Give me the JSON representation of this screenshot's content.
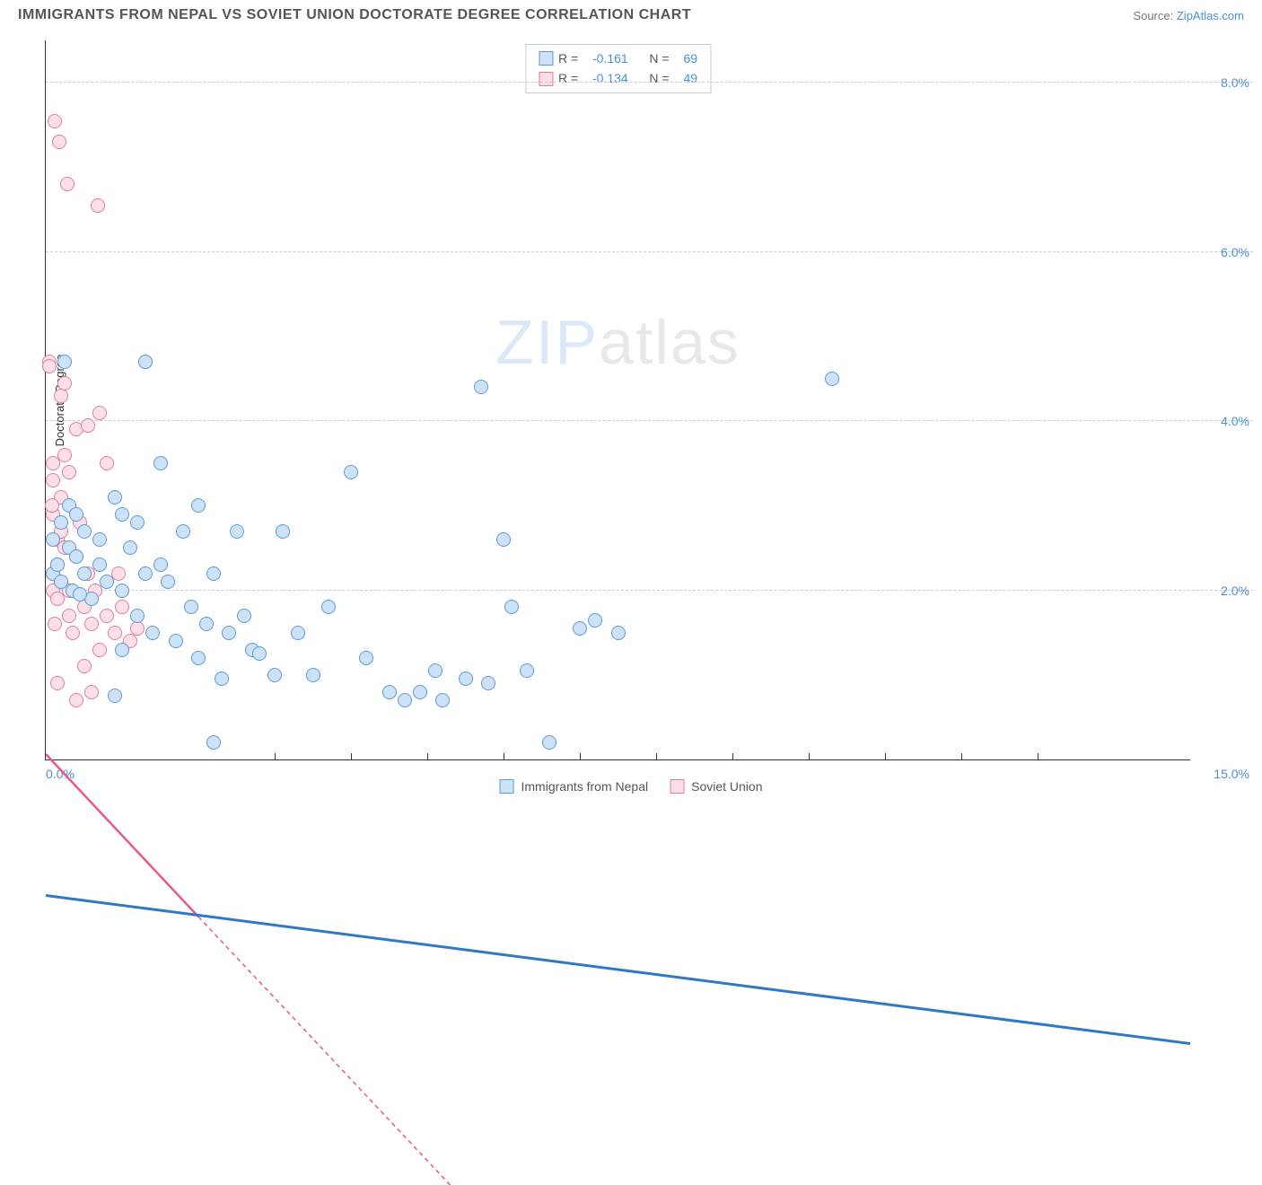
{
  "header": {
    "title": "IMMIGRANTS FROM NEPAL VS SOVIET UNION DOCTORATE DEGREE CORRELATION CHART",
    "source_label": "Source:",
    "source_name": "ZipAtlas.com"
  },
  "watermark": {
    "part1": "ZIP",
    "part2": "atlas"
  },
  "chart": {
    "type": "scatter",
    "ylabel": "Doctorate Degree",
    "xlim": [
      0,
      15
    ],
    "ylim": [
      0,
      8.5
    ],
    "x_min_label": "0.0%",
    "x_max_label": "15.0%",
    "x_ticks": [
      3,
      4,
      5,
      6,
      7,
      8,
      9,
      10,
      11,
      12,
      13
    ],
    "y_ticks": [
      {
        "v": 2,
        "label": "2.0%"
      },
      {
        "v": 4,
        "label": "4.0%"
      },
      {
        "v": 6,
        "label": "6.0%"
      },
      {
        "v": 8,
        "label": "8.0%"
      }
    ],
    "grid_color": "#cccccc",
    "axis_color": "#333333",
    "label_color": "#4a90d9",
    "point_radius": 8,
    "series": [
      {
        "name": "Immigrants from Nepal",
        "fill": "#cde2f6",
        "stroke": "#5a9bd5",
        "line_color": "#2f78c4",
        "line_width": 3,
        "line_dash": "solid",
        "r_value": "-0.161",
        "n_value": "69",
        "reg_start": {
          "x": 0,
          "y": 2.15
        },
        "reg_end": {
          "x": 15,
          "y": 1.05
        },
        "points": [
          [
            0.1,
            2.2
          ],
          [
            0.1,
            2.6
          ],
          [
            0.15,
            2.3
          ],
          [
            0.2,
            2.8
          ],
          [
            0.2,
            2.1
          ],
          [
            0.25,
            4.7
          ],
          [
            0.3,
            2.5
          ],
          [
            0.3,
            3.0
          ],
          [
            0.35,
            2.0
          ],
          [
            0.4,
            2.4
          ],
          [
            0.4,
            2.9
          ],
          [
            0.5,
            2.7
          ],
          [
            0.5,
            2.2
          ],
          [
            0.6,
            1.9
          ],
          [
            0.7,
            2.6
          ],
          [
            0.7,
            2.3
          ],
          [
            0.8,
            2.1
          ],
          [
            0.9,
            3.1
          ],
          [
            1.0,
            2.9
          ],
          [
            1.0,
            2.0
          ],
          [
            1.1,
            2.5
          ],
          [
            1.2,
            1.7
          ],
          [
            1.2,
            2.8
          ],
          [
            1.3,
            4.7
          ],
          [
            1.3,
            2.2
          ],
          [
            1.4,
            1.5
          ],
          [
            1.5,
            3.5
          ],
          [
            1.5,
            2.3
          ],
          [
            1.6,
            2.1
          ],
          [
            1.7,
            1.4
          ],
          [
            1.8,
            2.7
          ],
          [
            1.9,
            1.8
          ],
          [
            2.0,
            1.2
          ],
          [
            2.0,
            3.0
          ],
          [
            2.1,
            1.6
          ],
          [
            2.2,
            2.2
          ],
          [
            2.3,
            0.95
          ],
          [
            2.4,
            1.5
          ],
          [
            2.5,
            2.7
          ],
          [
            2.6,
            1.7
          ],
          [
            2.7,
            1.3
          ],
          [
            2.8,
            1.25
          ],
          [
            3.0,
            1.0
          ],
          [
            3.1,
            2.7
          ],
          [
            3.3,
            1.5
          ],
          [
            3.5,
            1.0
          ],
          [
            3.7,
            1.8
          ],
          [
            4.0,
            3.4
          ],
          [
            4.2,
            1.2
          ],
          [
            4.5,
            0.8
          ],
          [
            4.7,
            0.7
          ],
          [
            4.9,
            0.8
          ],
          [
            5.1,
            1.05
          ],
          [
            5.2,
            0.7
          ],
          [
            5.5,
            0.95
          ],
          [
            5.7,
            4.4
          ],
          [
            5.8,
            0.9
          ],
          [
            6.0,
            2.6
          ],
          [
            6.1,
            1.8
          ],
          [
            6.3,
            1.05
          ],
          [
            6.6,
            0.2
          ],
          [
            7.0,
            1.55
          ],
          [
            7.2,
            1.65
          ],
          [
            7.5,
            1.5
          ],
          [
            10.3,
            4.5
          ],
          [
            1.0,
            1.3
          ],
          [
            0.9,
            0.75
          ],
          [
            2.2,
            0.2
          ],
          [
            0.45,
            1.95
          ]
        ]
      },
      {
        "name": "Soviet Union",
        "fill": "#fbe0e7",
        "stroke": "#e87a9a",
        "line_color": "#e85a85",
        "line_width": 2.5,
        "line_dash": "solid_then_dash",
        "r_value": "-0.134",
        "n_value": "49",
        "reg_start": {
          "x": 0,
          "y": 3.2
        },
        "reg_end": {
          "x": 5.3,
          "y": 0
        },
        "reg_solid_end_x": 2.0,
        "points": [
          [
            0.05,
            4.7
          ],
          [
            0.05,
            4.65
          ],
          [
            0.1,
            3.5
          ],
          [
            0.1,
            3.3
          ],
          [
            0.1,
            2.9
          ],
          [
            0.1,
            2.2
          ],
          [
            0.1,
            2.0
          ],
          [
            0.12,
            7.55
          ],
          [
            0.15,
            2.6
          ],
          [
            0.15,
            2.3
          ],
          [
            0.15,
            1.9
          ],
          [
            0.18,
            7.3
          ],
          [
            0.2,
            4.3
          ],
          [
            0.2,
            3.1
          ],
          [
            0.2,
            2.7
          ],
          [
            0.2,
            2.1
          ],
          [
            0.25,
            3.6
          ],
          [
            0.25,
            2.5
          ],
          [
            0.28,
            6.8
          ],
          [
            0.3,
            1.7
          ],
          [
            0.3,
            2.0
          ],
          [
            0.35,
            1.5
          ],
          [
            0.4,
            3.9
          ],
          [
            0.4,
            2.4
          ],
          [
            0.45,
            2.8
          ],
          [
            0.5,
            1.8
          ],
          [
            0.5,
            1.1
          ],
          [
            0.55,
            2.2
          ],
          [
            0.6,
            1.6
          ],
          [
            0.6,
            0.8
          ],
          [
            0.65,
            2.0
          ],
          [
            0.68,
            6.55
          ],
          [
            0.7,
            4.1
          ],
          [
            0.7,
            1.3
          ],
          [
            0.8,
            3.5
          ],
          [
            0.8,
            1.7
          ],
          [
            0.9,
            1.5
          ],
          [
            0.95,
            2.2
          ],
          [
            1.0,
            1.8
          ],
          [
            1.1,
            1.4
          ],
          [
            1.2,
            1.55
          ],
          [
            1.3,
            4.7
          ],
          [
            0.15,
            0.9
          ],
          [
            0.4,
            0.7
          ],
          [
            0.55,
            3.95
          ],
          [
            0.3,
            3.4
          ],
          [
            0.08,
            3.0
          ],
          [
            0.25,
            4.45
          ],
          [
            0.12,
            1.6
          ]
        ]
      }
    ]
  },
  "stats_box": {
    "r_label": "R",
    "n_label": "N",
    "eq": "="
  },
  "legend": {
    "items": [
      "Immigrants from Nepal",
      "Soviet Union"
    ]
  }
}
